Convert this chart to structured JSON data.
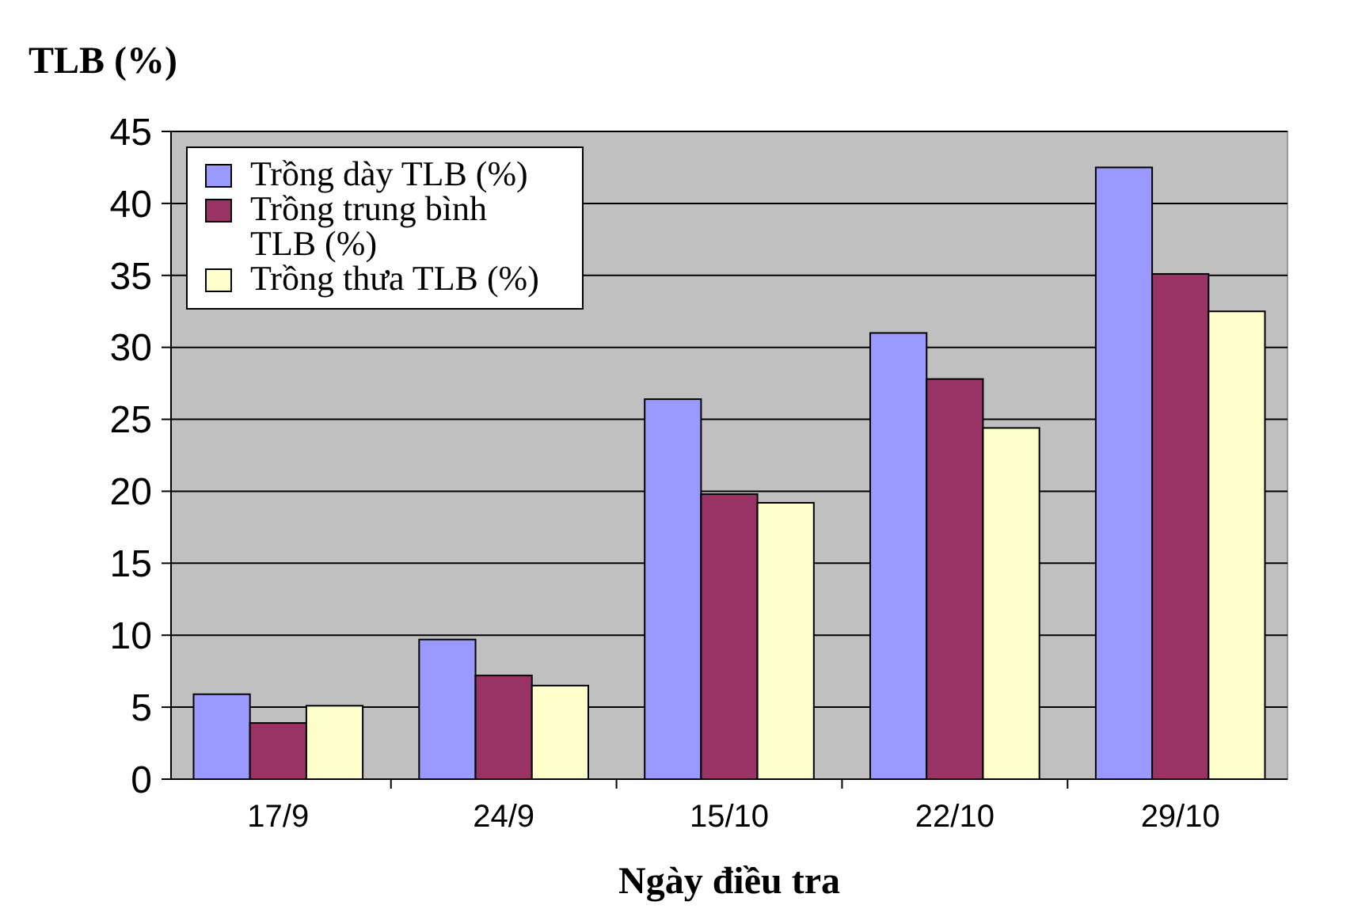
{
  "chart_data": {
    "type": "bar",
    "title": "TLB (%)",
    "xlabel": "Ngày điều tra",
    "categories": [
      "17/9",
      "24/9",
      "15/10",
      "22/10",
      "29/10"
    ],
    "series": [
      {
        "name": "Trồng dày TLB (%)",
        "color": "#9999ff",
        "values": [
          5.9,
          9.7,
          26.4,
          31.0,
          42.5
        ]
      },
      {
        "name": "Trồng trung bình TLB (%)",
        "color": "#993366",
        "values": [
          3.9,
          7.2,
          19.8,
          27.8,
          35.1
        ]
      },
      {
        "name": "Trồng thưa TLB (%)",
        "color": "#ffffcc",
        "values": [
          5.1,
          6.5,
          19.2,
          24.4,
          32.5
        ]
      }
    ],
    "ylim": [
      0,
      45
    ],
    "yticks": [
      0,
      5,
      10,
      15,
      20,
      25,
      30,
      35,
      40,
      45
    ],
    "grid": "y",
    "legend": "top left"
  }
}
